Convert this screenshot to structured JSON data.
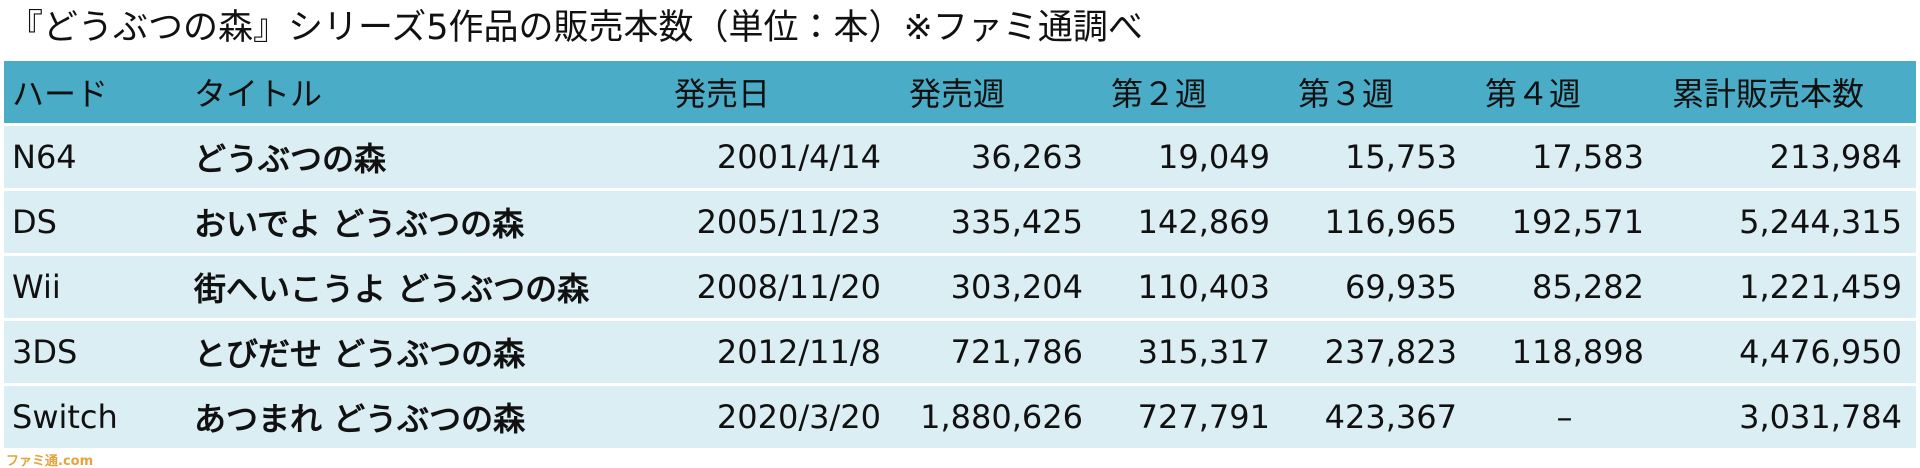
{
  "title": "『どうぶつの森』シリーズ5作品の販売本数（単位：本）※ファミ通調べ",
  "table": {
    "header": [
      "ハード",
      "タイトル",
      "発売日",
      "発売週",
      "第２週",
      "第３週",
      "第４週",
      "累計販売本数"
    ],
    "rows": [
      [
        "N64",
        "どうぶつの森",
        "2001/4/14",
        "36,263",
        "19,049",
        "15,753",
        "17,583",
        "213,984"
      ],
      [
        "DS",
        "おいでよ どうぶつの森",
        "2005/11/23",
        "335,425",
        "142,869",
        "116,965",
        "192,571",
        "5,244,315"
      ],
      [
        "Wii",
        "街へいこうよ どうぶつの森",
        "2008/11/20",
        "303,204",
        "110,403",
        "69,935",
        "85,282",
        "1,221,459"
      ],
      [
        "3DS",
        "とびだせ どうぶつの森",
        "2012/11/8",
        "721,786",
        "315,317",
        "237,823",
        "118,898",
        "4,476,950"
      ],
      [
        "Switch",
        "あつまれ どうぶつの森",
        "2020/3/20",
        "1,880,626",
        "727,791",
        "423,367",
        "–",
        "3,031,784"
      ]
    ]
  },
  "watermark": "ファミ通.com"
}
